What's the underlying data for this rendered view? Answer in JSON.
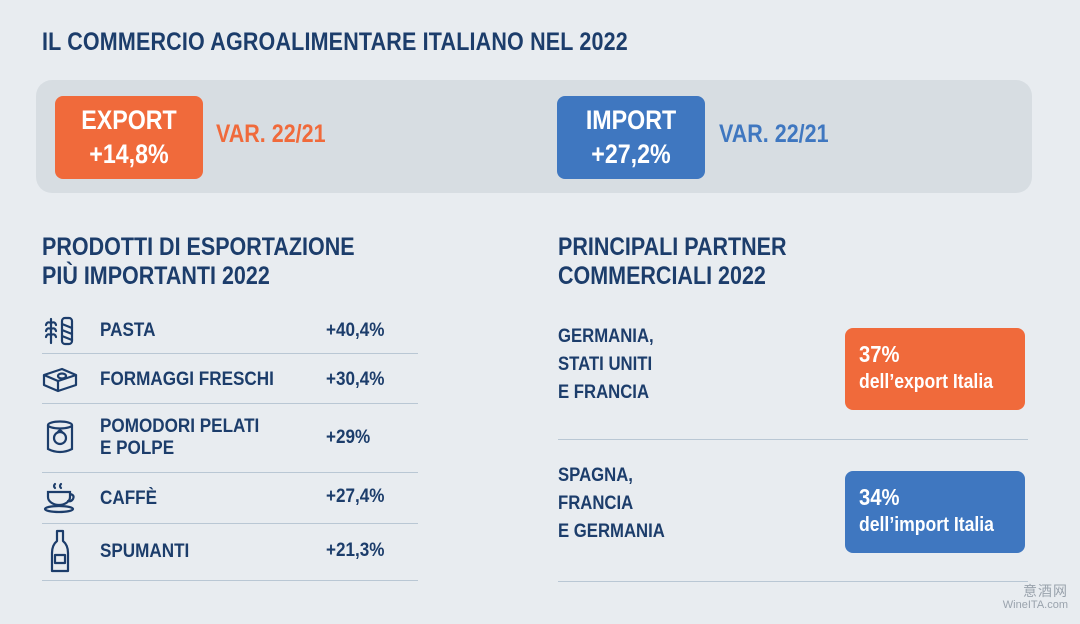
{
  "title": "IL COMMERCIO AGROALIMENTARE ITALIANO NEL 2022",
  "export": {
    "label": "EXPORT",
    "value": "+14,8%",
    "var": "VAR. 22/21",
    "color": "#f06a3b"
  },
  "import": {
    "label": "IMPORT",
    "value": "+27,2%",
    "var": "VAR. 22/21",
    "color": "#3f77c0"
  },
  "products": {
    "heading_line1": "PRODOTTI DI ESPORTAZIONE",
    "heading_line2": "PIÙ IMPORTANTI 2022",
    "items": [
      {
        "icon": "wheat-icon",
        "name": "PASTA",
        "value": "+40,4%"
      },
      {
        "icon": "cheese-icon",
        "name": "FORMAGGI FRESCHI",
        "value": "+30,4%"
      },
      {
        "icon": "tomato-can-icon",
        "name_line1": "POMODORI PELATI",
        "name_line2": "E POLPE",
        "value": "+29%"
      },
      {
        "icon": "coffee-cup-icon",
        "name": "CAFFÈ",
        "value": "+27,4%"
      },
      {
        "icon": "sparkling-wine-bottle-icon",
        "name": "SPUMANTI",
        "value": "+21,3%"
      }
    ]
  },
  "partners": {
    "heading_line1": "PRINCIPALI PARTNER",
    "heading_line2": "COMMERCIALI 2022",
    "items": [
      {
        "line1": "GERMANIA,",
        "line2": "STATI UNITI",
        "line3": "E FRANCIA",
        "pct": "37%",
        "desc": "dell’export Italia",
        "color": "#f06a3b"
      },
      {
        "line1": "SPAGNA,",
        "line2": "FRANCIA",
        "line3": "E GERMANIA",
        "pct": "34%",
        "desc": "dell’import Italia",
        "color": "#3f77c0"
      }
    ]
  },
  "watermark": {
    "cn": "意酒网",
    "en": "WineITA.com"
  },
  "colors": {
    "navy": "#1c3d6b",
    "background": "#e8ecf0",
    "banner": "#d7dde2"
  }
}
